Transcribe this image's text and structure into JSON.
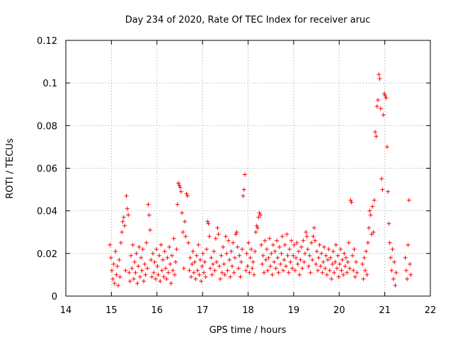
{
  "chart_data": {
    "type": "scatter",
    "title": "Day 234 of 2020, Rate Of TEC Index for receiver aruc",
    "xlabel": "GPS time / hours",
    "ylabel": "ROTI / TECUs",
    "xlim": [
      14,
      22
    ],
    "ylim": [
      0,
      0.12
    ],
    "x_ticks": [
      14,
      15,
      16,
      17,
      18,
      19,
      20,
      21,
      22
    ],
    "y_ticks": [
      0,
      0.02,
      0.04,
      0.06,
      0.08,
      0.1,
      0.12
    ],
    "x_tick_labels": [
      "14",
      "15",
      "16",
      "17",
      "18",
      "19",
      "20",
      "21",
      "22"
    ],
    "y_tick_labels": [
      "0",
      "0.02",
      "0.04",
      "0.06",
      "0.08",
      "0.1",
      "0.12"
    ],
    "grid": true,
    "marker": "plus",
    "color": "#ff0000",
    "points": [
      [
        14.97,
        0.024
      ],
      [
        14.99,
        0.018
      ],
      [
        15.01,
        0.012
      ],
      [
        15.03,
        0.008
      ],
      [
        15.05,
        0.015
      ],
      [
        15.07,
        0.006
      ],
      [
        15.09,
        0.021
      ],
      [
        15.11,
        0.01
      ],
      [
        15.13,
        0.014
      ],
      [
        15.15,
        0.005
      ],
      [
        15.17,
        0.017
      ],
      [
        15.19,
        0.009
      ],
      [
        15.21,
        0.025
      ],
      [
        15.23,
        0.03
      ],
      [
        15.25,
        0.035
      ],
      [
        15.27,
        0.037
      ],
      [
        15.29,
        0.033
      ],
      [
        15.31,
        0.012
      ],
      [
        15.33,
        0.047
      ],
      [
        15.35,
        0.041
      ],
      [
        15.37,
        0.038
      ],
      [
        15.39,
        0.011
      ],
      [
        15.41,
        0.007
      ],
      [
        15.43,
        0.019
      ],
      [
        15.45,
        0.013
      ],
      [
        15.47,
        0.024
      ],
      [
        15.49,
        0.008
      ],
      [
        15.51,
        0.016
      ],
      [
        15.53,
        0.011
      ],
      [
        15.55,
        0.02
      ],
      [
        15.57,
        0.006
      ],
      [
        15.59,
        0.014
      ],
      [
        15.61,
        0.023
      ],
      [
        15.63,
        0.009
      ],
      [
        15.65,
        0.018
      ],
      [
        15.67,
        0.012
      ],
      [
        15.69,
        0.022
      ],
      [
        15.71,
        0.007
      ],
      [
        15.73,
        0.015
      ],
      [
        15.75,
        0.01
      ],
      [
        15.77,
        0.025
      ],
      [
        15.79,
        0.013
      ],
      [
        15.81,
        0.043
      ],
      [
        15.83,
        0.038
      ],
      [
        15.85,
        0.031
      ],
      [
        15.87,
        0.017
      ],
      [
        15.89,
        0.009
      ],
      [
        15.91,
        0.02
      ],
      [
        15.93,
        0.011
      ],
      [
        15.95,
        0.016
      ],
      [
        15.97,
        0.008
      ],
      [
        15.99,
        0.022
      ],
      [
        16.01,
        0.014
      ],
      [
        16.03,
        0.01
      ],
      [
        16.05,
        0.019
      ],
      [
        16.07,
        0.007
      ],
      [
        16.09,
        0.024
      ],
      [
        16.11,
        0.012
      ],
      [
        16.13,
        0.017
      ],
      [
        16.15,
        0.009
      ],
      [
        16.17,
        0.021
      ],
      [
        16.19,
        0.013
      ],
      [
        16.21,
        0.008
      ],
      [
        16.23,
        0.018
      ],
      [
        16.25,
        0.011
      ],
      [
        16.27,
        0.023
      ],
      [
        16.29,
        0.015
      ],
      [
        16.31,
        0.006
      ],
      [
        16.33,
        0.019
      ],
      [
        16.35,
        0.012
      ],
      [
        16.37,
        0.027
      ],
      [
        16.39,
        0.01
      ],
      [
        16.41,
        0.016
      ],
      [
        16.43,
        0.022
      ],
      [
        16.45,
        0.043
      ],
      [
        16.47,
        0.053
      ],
      [
        16.49,
        0.052
      ],
      [
        16.51,
        0.051
      ],
      [
        16.53,
        0.049
      ],
      [
        16.55,
        0.039
      ],
      [
        16.57,
        0.03
      ],
      [
        16.59,
        0.013
      ],
      [
        16.61,
        0.035
      ],
      [
        16.63,
        0.028
      ],
      [
        16.65,
        0.048
      ],
      [
        16.67,
        0.047
      ],
      [
        16.69,
        0.025
      ],
      [
        16.71,
        0.012
      ],
      [
        16.73,
        0.018
      ],
      [
        16.75,
        0.009
      ],
      [
        16.77,
        0.015
      ],
      [
        16.79,
        0.021
      ],
      [
        16.81,
        0.011
      ],
      [
        16.83,
        0.016
      ],
      [
        16.85,
        0.008
      ],
      [
        16.87,
        0.019
      ],
      [
        16.89,
        0.012
      ],
      [
        16.91,
        0.024
      ],
      [
        16.93,
        0.01
      ],
      [
        16.95,
        0.017
      ],
      [
        16.97,
        0.007
      ],
      [
        16.99,
        0.014
      ],
      [
        17.01,
        0.02
      ],
      [
        17.03,
        0.011
      ],
      [
        17.05,
        0.016
      ],
      [
        17.07,
        0.009
      ],
      [
        17.09,
        0.022
      ],
      [
        17.11,
        0.035
      ],
      [
        17.13,
        0.034
      ],
      [
        17.15,
        0.028
      ],
      [
        17.17,
        0.013
      ],
      [
        17.19,
        0.018
      ],
      [
        17.21,
        0.01
      ],
      [
        17.23,
        0.015
      ],
      [
        17.25,
        0.021
      ],
      [
        17.27,
        0.012
      ],
      [
        17.29,
        0.027
      ],
      [
        17.31,
        0.016
      ],
      [
        17.33,
        0.032
      ],
      [
        17.35,
        0.029
      ],
      [
        17.37,
        0.014
      ],
      [
        17.39,
        0.008
      ],
      [
        17.41,
        0.019
      ],
      [
        17.43,
        0.011
      ],
      [
        17.45,
        0.023
      ],
      [
        17.47,
        0.015
      ],
      [
        17.49,
        0.01
      ],
      [
        17.51,
        0.028
      ],
      [
        17.53,
        0.02
      ],
      [
        17.55,
        0.012
      ],
      [
        17.57,
        0.026
      ],
      [
        17.59,
        0.017
      ],
      [
        17.61,
        0.009
      ],
      [
        17.63,
        0.021
      ],
      [
        17.65,
        0.014
      ],
      [
        17.67,
        0.025
      ],
      [
        17.69,
        0.011
      ],
      [
        17.71,
        0.018
      ],
      [
        17.73,
        0.029
      ],
      [
        17.75,
        0.03
      ],
      [
        17.77,
        0.023
      ],
      [
        17.79,
        0.013
      ],
      [
        17.81,
        0.019
      ],
      [
        17.83,
        0.009
      ],
      [
        17.85,
        0.016
      ],
      [
        17.87,
        0.022
      ],
      [
        17.89,
        0.047
      ],
      [
        17.91,
        0.05
      ],
      [
        17.93,
        0.057
      ],
      [
        17.95,
        0.012
      ],
      [
        17.97,
        0.02
      ],
      [
        17.99,
        0.014
      ],
      [
        18.01,
        0.025
      ],
      [
        18.03,
        0.011
      ],
      [
        18.05,
        0.018
      ],
      [
        18.07,
        0.022
      ],
      [
        18.09,
        0.013
      ],
      [
        18.11,
        0.016
      ],
      [
        18.13,
        0.01
      ],
      [
        18.15,
        0.021
      ],
      [
        18.17,
        0.03
      ],
      [
        18.19,
        0.033
      ],
      [
        18.21,
        0.032
      ],
      [
        18.23,
        0.037
      ],
      [
        18.25,
        0.039
      ],
      [
        18.27,
        0.038
      ],
      [
        18.29,
        0.024
      ],
      [
        18.31,
        0.015
      ],
      [
        18.33,
        0.019
      ],
      [
        18.35,
        0.011
      ],
      [
        18.37,
        0.026
      ],
      [
        18.39,
        0.017
      ],
      [
        18.41,
        0.022
      ],
      [
        18.43,
        0.012
      ],
      [
        18.45,
        0.018
      ],
      [
        18.47,
        0.027
      ],
      [
        18.49,
        0.014
      ],
      [
        18.51,
        0.02
      ],
      [
        18.53,
        0.01
      ],
      [
        18.55,
        0.024
      ],
      [
        18.57,
        0.016
      ],
      [
        18.59,
        0.021
      ],
      [
        18.61,
        0.013
      ],
      [
        18.63,
        0.026
      ],
      [
        18.65,
        0.018
      ],
      [
        18.67,
        0.011
      ],
      [
        18.69,
        0.023
      ],
      [
        18.71,
        0.015
      ],
      [
        18.73,
        0.02
      ],
      [
        18.75,
        0.028
      ],
      [
        18.77,
        0.012
      ],
      [
        18.79,
        0.017
      ],
      [
        18.81,
        0.024
      ],
      [
        18.83,
        0.014
      ],
      [
        18.85,
        0.029
      ],
      [
        18.87,
        0.019
      ],
      [
        18.89,
        0.011
      ],
      [
        18.91,
        0.022
      ],
      [
        18.93,
        0.016
      ],
      [
        18.95,
        0.026
      ],
      [
        18.97,
        0.013
      ],
      [
        18.99,
        0.019
      ],
      [
        19.01,
        0.024
      ],
      [
        19.03,
        0.012
      ],
      [
        19.05,
        0.018
      ],
      [
        19.07,
        0.025
      ],
      [
        19.09,
        0.015
      ],
      [
        19.11,
        0.021
      ],
      [
        19.13,
        0.01
      ],
      [
        19.15,
        0.017
      ],
      [
        19.17,
        0.023
      ],
      [
        19.19,
        0.013
      ],
      [
        19.21,
        0.026
      ],
      [
        19.23,
        0.016
      ],
      [
        19.25,
        0.02
      ],
      [
        19.27,
        0.03
      ],
      [
        19.29,
        0.028
      ],
      [
        19.31,
        0.022
      ],
      [
        19.33,
        0.014
      ],
      [
        19.35,
        0.019
      ],
      [
        19.37,
        0.011
      ],
      [
        19.39,
        0.025
      ],
      [
        19.41,
        0.017
      ],
      [
        19.43,
        0.028
      ],
      [
        19.45,
        0.032
      ],
      [
        19.47,
        0.026
      ],
      [
        19.49,
        0.015
      ],
      [
        19.51,
        0.021
      ],
      [
        19.53,
        0.012
      ],
      [
        19.55,
        0.018
      ],
      [
        19.57,
        0.024
      ],
      [
        19.59,
        0.014
      ],
      [
        19.61,
        0.02
      ],
      [
        19.63,
        0.011
      ],
      [
        19.65,
        0.016
      ],
      [
        19.67,
        0.023
      ],
      [
        19.69,
        0.013
      ],
      [
        19.71,
        0.019
      ],
      [
        19.73,
        0.01
      ],
      [
        19.75,
        0.017
      ],
      [
        19.77,
        0.022
      ],
      [
        19.79,
        0.012
      ],
      [
        19.81,
        0.018
      ],
      [
        19.83,
        0.008
      ],
      [
        19.85,
        0.015
      ],
      [
        19.87,
        0.021
      ],
      [
        19.89,
        0.011
      ],
      [
        19.91,
        0.016
      ],
      [
        19.93,
        0.024
      ],
      [
        19.95,
        0.013
      ],
      [
        19.97,
        0.019
      ],
      [
        19.99,
        0.009
      ],
      [
        20.01,
        0.015
      ],
      [
        20.03,
        0.022
      ],
      [
        20.05,
        0.012
      ],
      [
        20.07,
        0.017
      ],
      [
        20.09,
        0.01
      ],
      [
        20.11,
        0.02
      ],
      [
        20.13,
        0.014
      ],
      [
        20.15,
        0.018
      ],
      [
        20.17,
        0.011
      ],
      [
        20.19,
        0.016
      ],
      [
        20.21,
        0.025
      ],
      [
        20.23,
        0.013
      ],
      [
        20.25,
        0.045
      ],
      [
        20.27,
        0.044
      ],
      [
        20.29,
        0.019
      ],
      [
        20.31,
        0.012
      ],
      [
        20.33,
        0.022
      ],
      [
        20.35,
        0.009
      ],
      [
        20.37,
        0.016
      ],
      [
        20.39,
        0.011
      ],
      [
        20.51,
        0.015
      ],
      [
        20.53,
        0.008
      ],
      [
        20.55,
        0.018
      ],
      [
        20.57,
        0.012
      ],
      [
        20.59,
        0.021
      ],
      [
        20.61,
        0.01
      ],
      [
        20.63,
        0.025
      ],
      [
        20.65,
        0.032
      ],
      [
        20.67,
        0.04
      ],
      [
        20.69,
        0.038
      ],
      [
        20.71,
        0.029
      ],
      [
        20.73,
        0.042
      ],
      [
        20.75,
        0.03
      ],
      [
        20.77,
        0.045
      ],
      [
        20.79,
        0.077
      ],
      [
        20.81,
        0.075
      ],
      [
        20.83,
        0.089
      ],
      [
        20.85,
        0.092
      ],
      [
        20.87,
        0.104
      ],
      [
        20.89,
        0.102
      ],
      [
        20.91,
        0.088
      ],
      [
        20.93,
        0.055
      ],
      [
        20.95,
        0.05
      ],
      [
        20.97,
        0.085
      ],
      [
        20.99,
        0.095
      ],
      [
        21.01,
        0.094
      ],
      [
        21.03,
        0.093
      ],
      [
        21.05,
        0.07
      ],
      [
        21.07,
        0.049
      ],
      [
        21.09,
        0.034
      ],
      [
        21.11,
        0.025
      ],
      [
        21.13,
        0.018
      ],
      [
        21.15,
        0.012
      ],
      [
        21.17,
        0.022
      ],
      [
        21.19,
        0.008
      ],
      [
        21.21,
        0.016
      ],
      [
        21.23,
        0.005
      ],
      [
        21.25,
        0.011
      ],
      [
        21.45,
        0.018
      ],
      [
        21.47,
        0.012
      ],
      [
        21.49,
        0.008
      ],
      [
        21.51,
        0.024
      ],
      [
        21.53,
        0.045
      ],
      [
        21.55,
        0.015
      ],
      [
        21.57,
        0.01
      ]
    ]
  }
}
